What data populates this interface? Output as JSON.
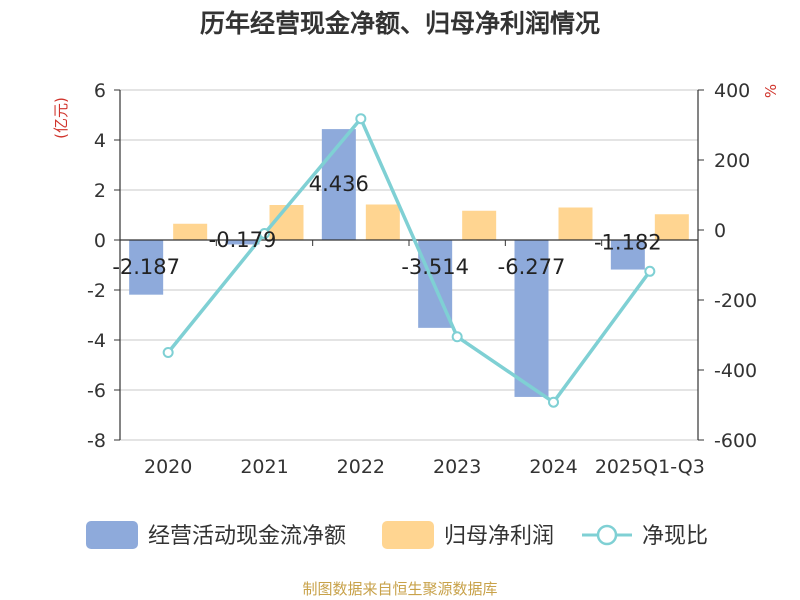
{
  "title": "历年经营现金净额、归母净利润情况",
  "source": "制图数据来自恒生聚源数据库",
  "chart_data": {
    "type": "bar",
    "categories": [
      "2020",
      "2021",
      "2022",
      "2023",
      "2024",
      "2025Q1-Q3"
    ],
    "series": [
      {
        "name": "经营活动现金流净额",
        "kind": "bar",
        "axis": "left",
        "color": "#8eaadb",
        "values": [
          -2.187,
          -0.179,
          4.436,
          -3.514,
          -6.277,
          -1.182
        ],
        "labels": [
          "-2.187",
          "-0.179",
          "4.436",
          "-3.514",
          "-6.277",
          "-1.182"
        ]
      },
      {
        "name": "归母净利润",
        "kind": "bar",
        "axis": "left",
        "color": "#ffd591",
        "values": [
          0.65,
          1.4,
          1.42,
          1.17,
          1.3,
          1.03
        ]
      },
      {
        "name": "净现比",
        "kind": "line",
        "axis": "right",
        "color": "#7fd0d4",
        "values": [
          -350,
          -10,
          318,
          -305,
          -492,
          -118
        ]
      }
    ],
    "left_axis": {
      "unit": "(亿元)",
      "min": -8,
      "max": 6,
      "step": 2
    },
    "right_axis": {
      "unit": "%",
      "min": -600,
      "max": 400,
      "step": 200
    },
    "legend_position": "bottom",
    "grid": true
  }
}
